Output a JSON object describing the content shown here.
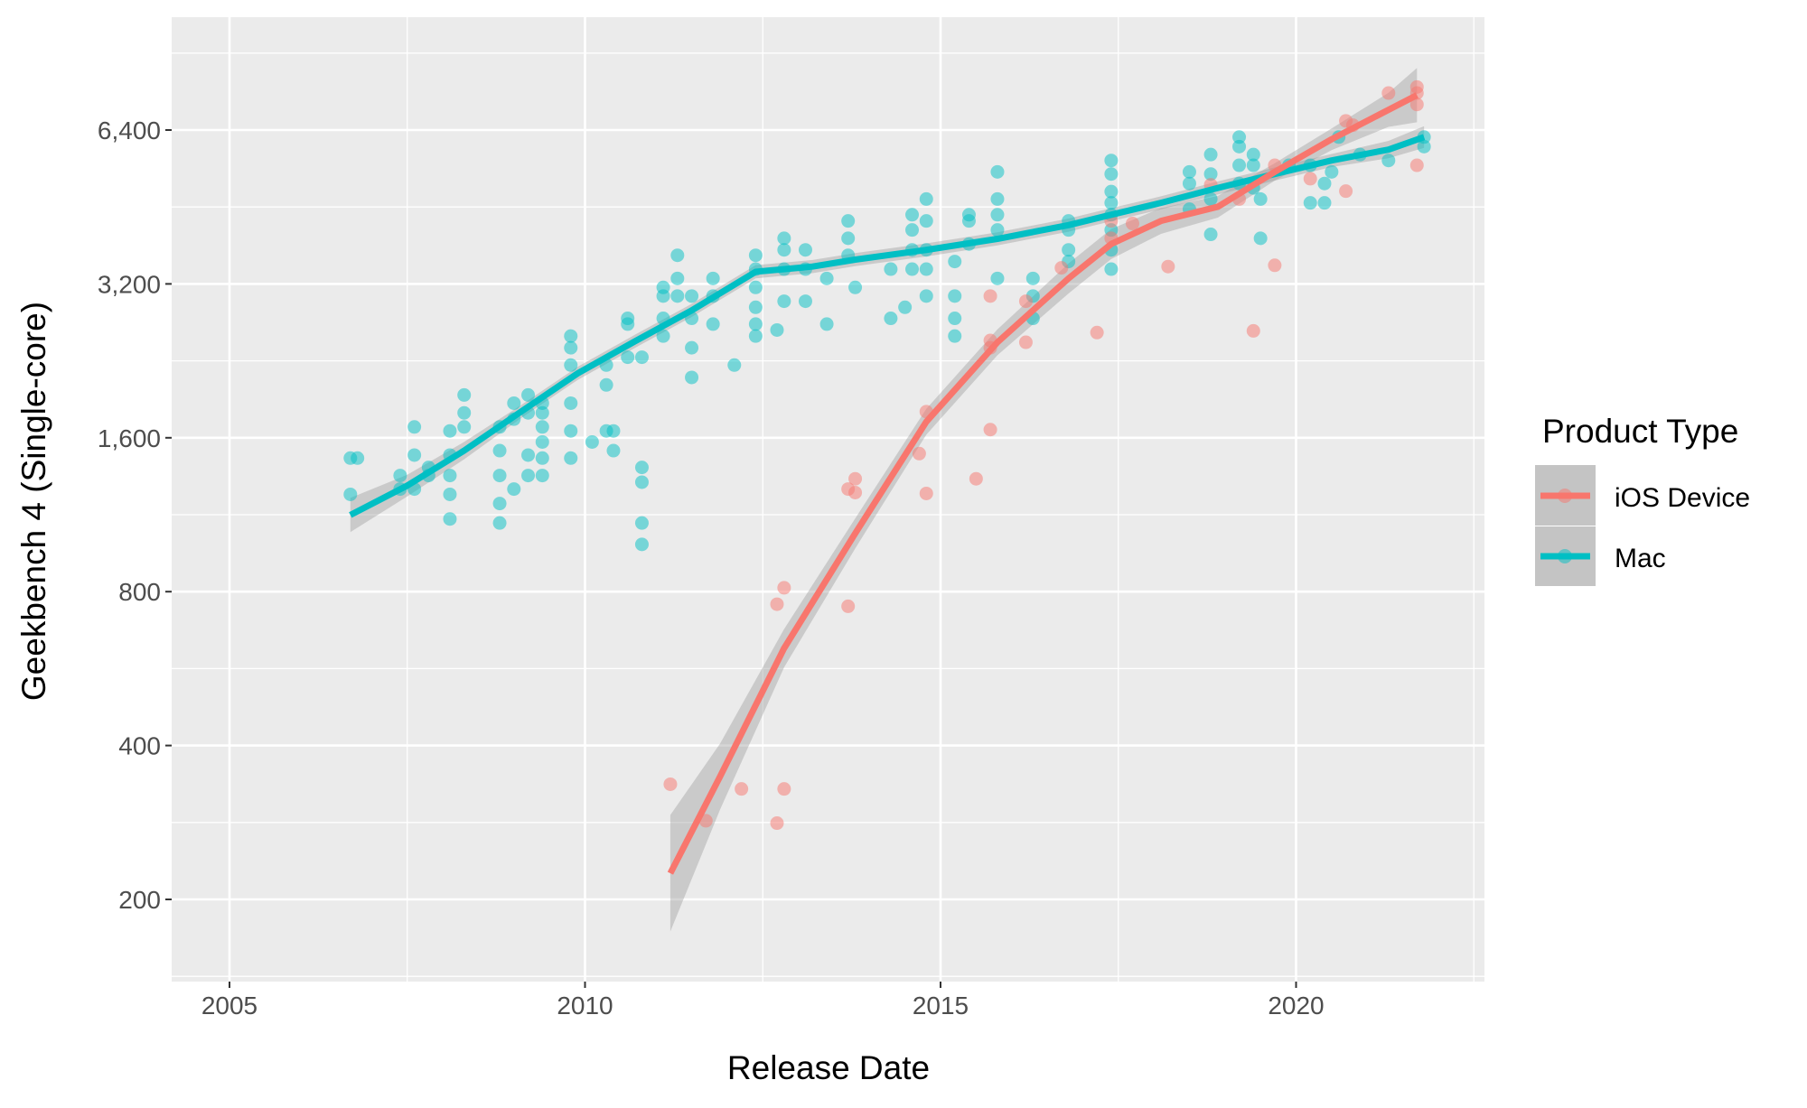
{
  "chart_data": {
    "type": "scatter",
    "title": "",
    "xlabel": "Release Date",
    "ylabel": "Geekbench 4 (Single-core)",
    "x_ticks": [
      2005,
      2010,
      2015,
      2020
    ],
    "x_tick_labels": [
      "2005",
      "2010",
      "2015",
      "2020"
    ],
    "y_scale": "log2",
    "y_ticks": [
      200,
      400,
      800,
      1600,
      3200,
      6400
    ],
    "y_tick_labels": [
      "200",
      "400",
      "800",
      "1,600",
      "3,200",
      "6,400"
    ],
    "xlim": [
      2004.2,
      2022.7
    ],
    "ylim": [
      141,
      10000
    ],
    "grid": true,
    "legend": {
      "title": "Product Type",
      "placement": "right",
      "entries": [
        "iOS Device",
        "Mac"
      ]
    },
    "series": [
      {
        "name": "iOS Device",
        "color": "#F8766D",
        "points": [
          [
            2011.2,
            336
          ],
          [
            2011.7,
            285
          ],
          [
            2012.2,
            329
          ],
          [
            2012.7,
            282
          ],
          [
            2012.8,
            329
          ],
          [
            2012.7,
            756
          ],
          [
            2012.8,
            814
          ],
          [
            2013.7,
            749
          ],
          [
            2013.7,
            1270
          ],
          [
            2013.8,
            1330
          ],
          [
            2013.8,
            1250
          ],
          [
            2014.7,
            1490
          ],
          [
            2014.8,
            1800
          ],
          [
            2014.8,
            1245
          ],
          [
            2015.5,
            1330
          ],
          [
            2015.7,
            1660
          ],
          [
            2015.7,
            2400
          ],
          [
            2015.7,
            2480
          ],
          [
            2015.7,
            3030
          ],
          [
            2016.2,
            2960
          ],
          [
            2016.2,
            2460
          ],
          [
            2016.7,
            3440
          ],
          [
            2017.2,
            2570
          ],
          [
            2017.4,
            3930
          ],
          [
            2017.4,
            4250
          ],
          [
            2017.7,
            4200
          ],
          [
            2018.2,
            3460
          ],
          [
            2018.8,
            5000
          ],
          [
            2019.2,
            4690
          ],
          [
            2019.4,
            2590
          ],
          [
            2019.7,
            3480
          ],
          [
            2019.7,
            5460
          ],
          [
            2020.2,
            5140
          ],
          [
            2020.7,
            6670
          ],
          [
            2020.7,
            4860
          ],
          [
            2020.8,
            6540
          ],
          [
            2021.3,
            7560
          ],
          [
            2021.7,
            7770
          ],
          [
            2021.7,
            7560
          ],
          [
            2021.7,
            7180
          ],
          [
            2021.7,
            5460
          ]
        ],
        "smooth": [
          [
            2011.2,
            225
          ],
          [
            2011.9,
            348
          ],
          [
            2012.8,
            620
          ],
          [
            2013.8,
            1040
          ],
          [
            2014.8,
            1720
          ],
          [
            2015.8,
            2460
          ],
          [
            2016.8,
            3280
          ],
          [
            2017.4,
            3830
          ],
          [
            2018.1,
            4250
          ],
          [
            2018.9,
            4530
          ],
          [
            2019.7,
            5300
          ],
          [
            2020.5,
            6140
          ],
          [
            2021.3,
            7010
          ],
          [
            2021.7,
            7490
          ]
        ],
        "ribbon_factor": [
          1.3,
          1.16,
          1.09,
          1.07,
          1.06,
          1.06,
          1.07,
          1.07,
          1.06,
          1.05,
          1.04,
          1.05,
          1.08,
          1.13
        ]
      },
      {
        "name": "Mac",
        "color": "#00BFC4",
        "points": [
          [
            2006.7,
            1460
          ],
          [
            2006.8,
            1460
          ],
          [
            2006.7,
            1240
          ],
          [
            2007.4,
            1350
          ],
          [
            2007.4,
            1270
          ],
          [
            2007.6,
            1680
          ],
          [
            2007.6,
            1480
          ],
          [
            2007.6,
            1270
          ],
          [
            2007.8,
            1400
          ],
          [
            2007.8,
            1350
          ],
          [
            2008.1,
            1240
          ],
          [
            2008.1,
            1110
          ],
          [
            2008.1,
            1650
          ],
          [
            2008.1,
            1480
          ],
          [
            2008.1,
            1350
          ],
          [
            2008.3,
            1940
          ],
          [
            2008.3,
            1790
          ],
          [
            2008.3,
            1680
          ],
          [
            2008.8,
            1680
          ],
          [
            2008.8,
            1510
          ],
          [
            2008.8,
            1350
          ],
          [
            2008.8,
            1190
          ],
          [
            2008.8,
            1090
          ],
          [
            2009.0,
            1870
          ],
          [
            2009.0,
            1740
          ],
          [
            2009.0,
            1270
          ],
          [
            2009.2,
            1940
          ],
          [
            2009.2,
            1790
          ],
          [
            2009.2,
            1480
          ],
          [
            2009.2,
            1350
          ],
          [
            2009.4,
            1870
          ],
          [
            2009.4,
            1790
          ],
          [
            2009.4,
            1680
          ],
          [
            2009.4,
            1570
          ],
          [
            2009.4,
            1460
          ],
          [
            2009.4,
            1350
          ],
          [
            2009.8,
            2530
          ],
          [
            2009.8,
            2400
          ],
          [
            2009.8,
            2220
          ],
          [
            2009.8,
            1870
          ],
          [
            2009.8,
            1650
          ],
          [
            2009.8,
            1460
          ],
          [
            2010.1,
            1570
          ],
          [
            2010.3,
            2220
          ],
          [
            2010.3,
            2030
          ],
          [
            2010.3,
            1650
          ],
          [
            2010.4,
            1650
          ],
          [
            2010.4,
            1510
          ],
          [
            2010.6,
            2740
          ],
          [
            2010.6,
            2670
          ],
          [
            2010.6,
            2300
          ],
          [
            2010.8,
            2300
          ],
          [
            2010.8,
            1400
          ],
          [
            2010.8,
            1310
          ],
          [
            2010.8,
            1090
          ],
          [
            2010.8,
            990
          ],
          [
            2011.1,
            3150
          ],
          [
            2011.1,
            3030
          ],
          [
            2011.1,
            2740
          ],
          [
            2011.1,
            2530
          ],
          [
            2011.3,
            3640
          ],
          [
            2011.3,
            3280
          ],
          [
            2011.3,
            3030
          ],
          [
            2011.5,
            3030
          ],
          [
            2011.5,
            2740
          ],
          [
            2011.5,
            2400
          ],
          [
            2011.5,
            2100
          ],
          [
            2011.8,
            3280
          ],
          [
            2011.8,
            3030
          ],
          [
            2011.8,
            2670
          ],
          [
            2012.1,
            2220
          ],
          [
            2012.4,
            3640
          ],
          [
            2012.4,
            3420
          ],
          [
            2012.4,
            3150
          ],
          [
            2012.4,
            2880
          ],
          [
            2012.4,
            2670
          ],
          [
            2012.4,
            2530
          ],
          [
            2012.7,
            2600
          ],
          [
            2012.8,
            3930
          ],
          [
            2012.8,
            3730
          ],
          [
            2012.8,
            3420
          ],
          [
            2012.8,
            2960
          ],
          [
            2013.1,
            3730
          ],
          [
            2013.1,
            3420
          ],
          [
            2013.1,
            2960
          ],
          [
            2013.4,
            3280
          ],
          [
            2013.4,
            2670
          ],
          [
            2013.7,
            4250
          ],
          [
            2013.7,
            3930
          ],
          [
            2013.7,
            3640
          ],
          [
            2013.8,
            3150
          ],
          [
            2014.3,
            3420
          ],
          [
            2014.3,
            2740
          ],
          [
            2014.5,
            2880
          ],
          [
            2014.6,
            4370
          ],
          [
            2014.6,
            4080
          ],
          [
            2014.6,
            3730
          ],
          [
            2014.6,
            3420
          ],
          [
            2014.8,
            4690
          ],
          [
            2014.8,
            4250
          ],
          [
            2014.8,
            3730
          ],
          [
            2014.8,
            3420
          ],
          [
            2014.8,
            3030
          ],
          [
            2015.2,
            3540
          ],
          [
            2015.2,
            3030
          ],
          [
            2015.2,
            2740
          ],
          [
            2015.2,
            2530
          ],
          [
            2015.4,
            4370
          ],
          [
            2015.4,
            4250
          ],
          [
            2015.4,
            3830
          ],
          [
            2015.8,
            5300
          ],
          [
            2015.8,
            4690
          ],
          [
            2015.8,
            4370
          ],
          [
            2015.8,
            4080
          ],
          [
            2015.8,
            3280
          ],
          [
            2016.3,
            3280
          ],
          [
            2016.3,
            3030
          ],
          [
            2016.3,
            2740
          ],
          [
            2016.8,
            4250
          ],
          [
            2016.8,
            4080
          ],
          [
            2016.8,
            3730
          ],
          [
            2016.8,
            3540
          ],
          [
            2017.4,
            5580
          ],
          [
            2017.4,
            5250
          ],
          [
            2017.4,
            4850
          ],
          [
            2017.4,
            4610
          ],
          [
            2017.4,
            4370
          ],
          [
            2017.4,
            4080
          ],
          [
            2017.4,
            3730
          ],
          [
            2017.4,
            3420
          ],
          [
            2018.5,
            5300
          ],
          [
            2018.5,
            5030
          ],
          [
            2018.5,
            4480
          ],
          [
            2018.8,
            5730
          ],
          [
            2018.8,
            5250
          ],
          [
            2018.8,
            4690
          ],
          [
            2018.8,
            4000
          ],
          [
            2019.2,
            6200
          ],
          [
            2019.2,
            5940
          ],
          [
            2019.2,
            5460
          ],
          [
            2019.2,
            5030
          ],
          [
            2019.4,
            5730
          ],
          [
            2019.4,
            5460
          ],
          [
            2019.4,
            4930
          ],
          [
            2019.5,
            4690
          ],
          [
            2019.5,
            3930
          ],
          [
            2019.9,
            5460
          ],
          [
            2020.2,
            5460
          ],
          [
            2020.2,
            4610
          ],
          [
            2020.4,
            4610
          ],
          [
            2020.4,
            5030
          ],
          [
            2020.5,
            5300
          ],
          [
            2020.6,
            6200
          ],
          [
            2020.9,
            5730
          ],
          [
            2021.3,
            5580
          ],
          [
            2021.8,
            6200
          ],
          [
            2021.8,
            5940
          ]
        ],
        "smooth": [
          [
            2006.7,
            1130
          ],
          [
            2007.5,
            1290
          ],
          [
            2008.3,
            1510
          ],
          [
            2009.1,
            1800
          ],
          [
            2009.9,
            2140
          ],
          [
            2010.7,
            2470
          ],
          [
            2011.5,
            2840
          ],
          [
            2012.4,
            3380
          ],
          [
            2013.2,
            3460
          ],
          [
            2013.8,
            3570
          ],
          [
            2014.8,
            3730
          ],
          [
            2015.8,
            3920
          ],
          [
            2016.8,
            4170
          ],
          [
            2017.4,
            4370
          ],
          [
            2018.1,
            4610
          ],
          [
            2018.9,
            4930
          ],
          [
            2019.7,
            5250
          ],
          [
            2020.5,
            5580
          ],
          [
            2021.3,
            5860
          ],
          [
            2021.8,
            6200
          ]
        ],
        "ribbon_factor": [
          1.08,
          1.05,
          1.04,
          1.03,
          1.03,
          1.03,
          1.03,
          1.03,
          1.03,
          1.03,
          1.03,
          1.03,
          1.03,
          1.03,
          1.03,
          1.03,
          1.03,
          1.03,
          1.04,
          1.05
        ]
      }
    ]
  }
}
